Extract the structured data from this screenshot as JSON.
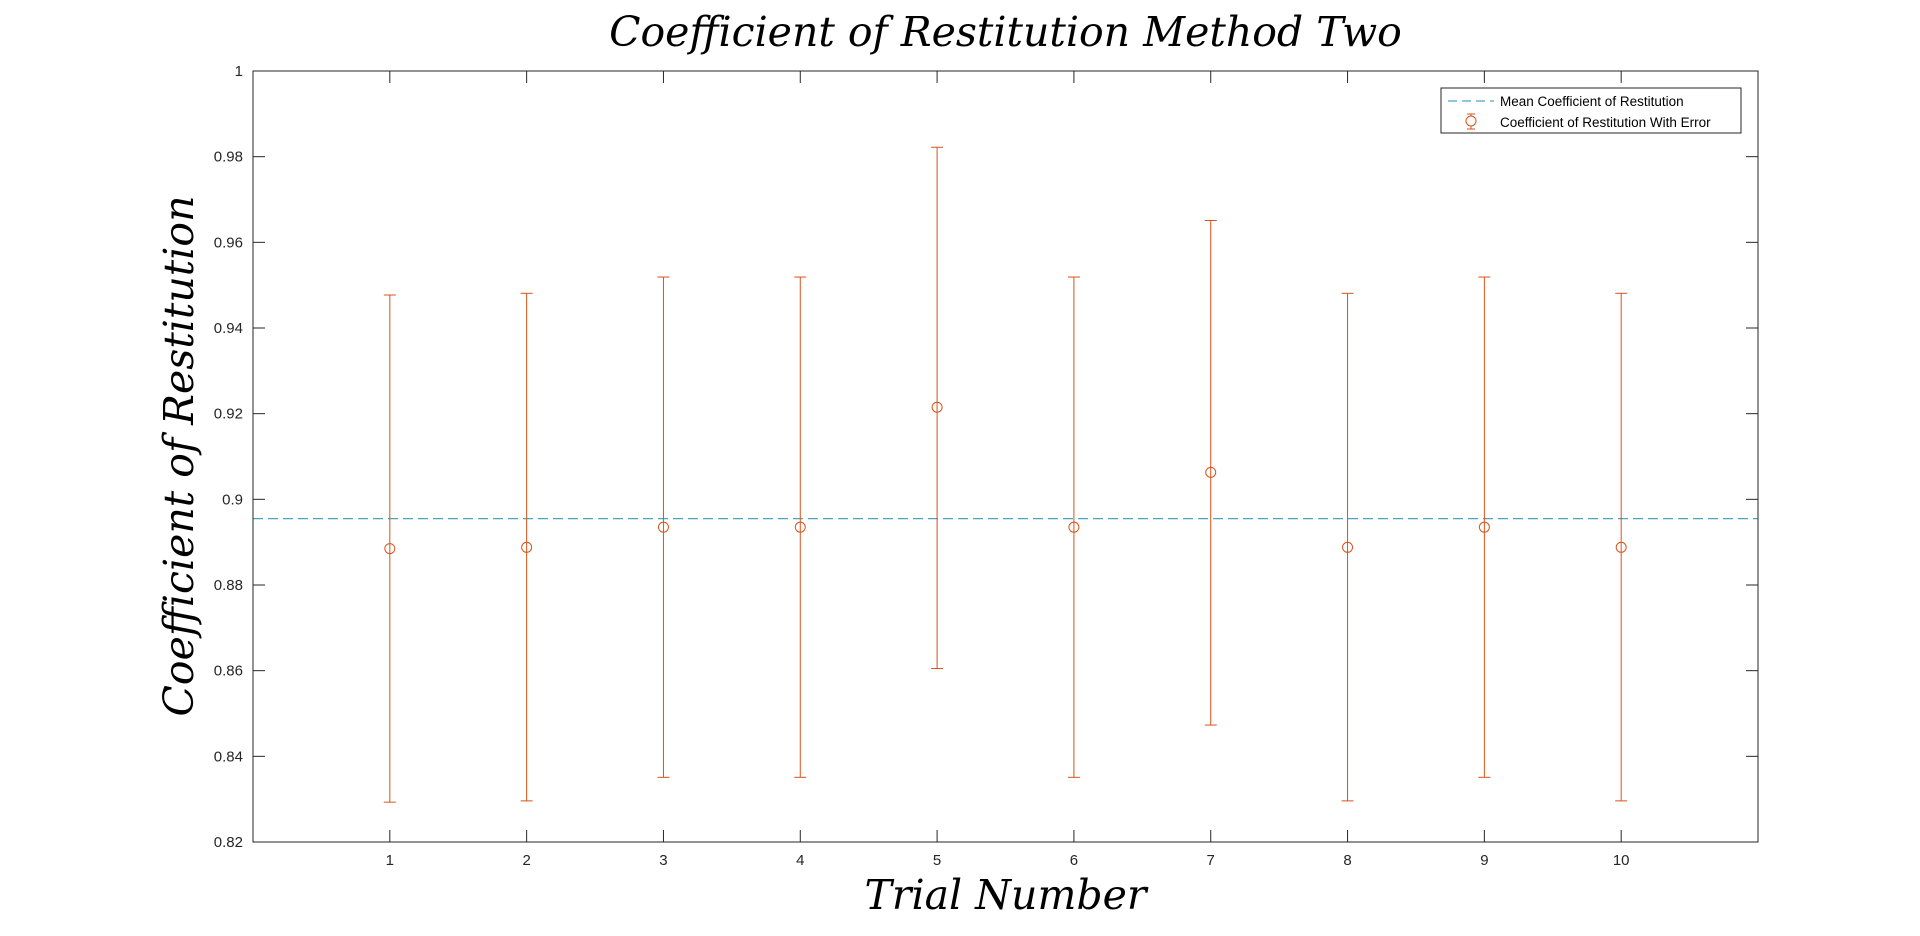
{
  "chart_data": {
    "type": "scatter",
    "title": "Coefficient of Restitution Method Two",
    "xlabel": "Trial Number",
    "ylabel": "Coefficient of Restitution",
    "xlim": [
      0,
      11
    ],
    "ylim": [
      0.82,
      1
    ],
    "xticks": [
      1,
      2,
      3,
      4,
      5,
      6,
      7,
      8,
      9,
      10
    ],
    "yticks": [
      0.82,
      0.84,
      0.86,
      0.88,
      0.9,
      0.92,
      0.94,
      0.96,
      0.98,
      1
    ],
    "ytick_labels": [
      "0.82",
      "0.84",
      "0.86",
      "0.88",
      "0.9",
      "0.92",
      "0.94",
      "0.96",
      "0.98",
      "1"
    ],
    "grid": false,
    "legend_position": "top-right",
    "series": [
      {
        "name": "Mean Coefficient of Restitution",
        "style": "dashed-line",
        "color": "#4DA3C7",
        "y": 0.8955
      },
      {
        "name": "Coefficient of Restitution With Error",
        "style": "errorbar-circle",
        "color": "#D95319",
        "x": [
          1,
          2,
          3,
          4,
          5,
          6,
          7,
          8,
          9,
          10
        ],
        "y": [
          0.8885,
          0.8888,
          0.8935,
          0.8935,
          0.9215,
          0.8935,
          0.9063,
          0.8888,
          0.8935,
          0.8888
        ],
        "lower": [
          0.8293,
          0.8296,
          0.8351,
          0.8351,
          0.8605,
          0.8351,
          0.8473,
          0.8296,
          0.8351,
          0.8296
        ],
        "upper": [
          0.9477,
          0.9481,
          0.9519,
          0.9519,
          0.9822,
          0.9519,
          0.9651,
          0.9481,
          0.9519,
          0.9481
        ]
      }
    ]
  }
}
